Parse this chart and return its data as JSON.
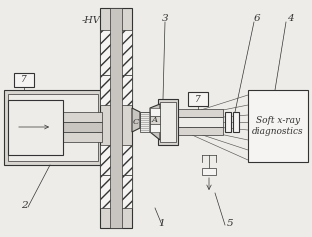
{
  "bg_color": "#eeece8",
  "line_color": "#333333",
  "fill_light": "#d8d5d0",
  "fill_mid": "#c8c5c0",
  "fill_white": "#f5f4f2",
  "labels": {
    "HV": "-HV",
    "1": "1",
    "2": "2",
    "3": "3",
    "4": "4",
    "5": "5",
    "6": "6",
    "7a": "7",
    "7b": "7",
    "C": "C",
    "A": "A",
    "soft_xray": "Soft x-ray\ndiagnostics"
  },
  "figsize": [
    3.12,
    2.37
  ],
  "dpi": 100
}
